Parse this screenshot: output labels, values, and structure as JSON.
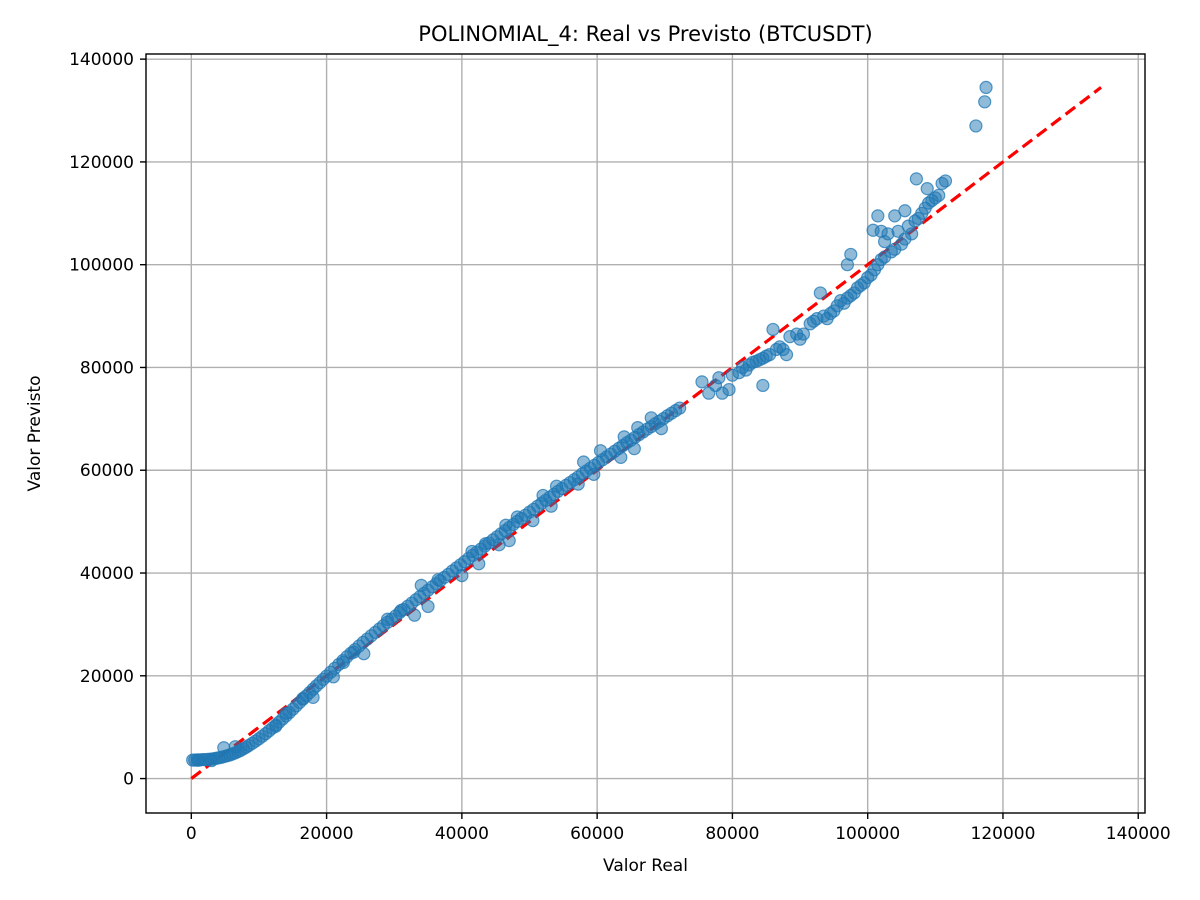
{
  "chart_data": {
    "type": "scatter",
    "title": "POLINOMIAL_4: Real vs Previsto (BTCUSDT)",
    "xlabel": "Valor Real",
    "ylabel": "Valor Previsto",
    "xlim": [
      -6700,
      141000
    ],
    "ylim": [
      -6700,
      141000
    ],
    "xticks": [
      0,
      20000,
      40000,
      60000,
      80000,
      100000,
      120000,
      140000
    ],
    "yticks": [
      0,
      20000,
      40000,
      60000,
      80000,
      100000,
      120000,
      140000
    ],
    "xtick_labels": [
      "0",
      "20000",
      "40000",
      "60000",
      "80000",
      "100000",
      "120000",
      "140000"
    ],
    "ytick_labels": [
      "0",
      "20000",
      "40000",
      "60000",
      "80000",
      "100000",
      "120000",
      "140000"
    ],
    "grid": true,
    "colors": {
      "points": "#1f77b4",
      "reference_line": "#ff0000"
    },
    "reference_line": {
      "x": [
        0,
        134500
      ],
      "y": [
        0,
        134500
      ],
      "style": "dashed"
    },
    "series": [
      {
        "points": [
          [
            200,
            3600
          ],
          [
            500,
            3600
          ],
          [
            900,
            3650
          ],
          [
            1300,
            3650
          ],
          [
            1700,
            3700
          ],
          [
            2100,
            3700
          ],
          [
            2500,
            3750
          ],
          [
            2900,
            3800
          ],
          [
            3300,
            3850
          ],
          [
            3700,
            3950
          ],
          [
            4100,
            4050
          ],
          [
            4500,
            4150
          ],
          [
            4900,
            4300
          ],
          [
            5300,
            4450
          ],
          [
            5700,
            4600
          ],
          [
            6100,
            4800
          ],
          [
            6500,
            5000
          ],
          [
            6900,
            5250
          ],
          [
            7300,
            5500
          ],
          [
            7700,
            5800
          ],
          [
            8100,
            6100
          ],
          [
            8500,
            6450
          ],
          [
            9000,
            6850
          ],
          [
            9500,
            7300
          ],
          [
            10000,
            7750
          ],
          [
            10500,
            8250
          ],
          [
            11000,
            8750
          ],
          [
            11500,
            9300
          ],
          [
            12000,
            9850
          ],
          [
            12500,
            10400
          ],
          [
            13000,
            11000
          ],
          [
            13500,
            11600
          ],
          [
            14000,
            12200
          ],
          [
            14500,
            12850
          ],
          [
            15000,
            13500
          ],
          [
            15500,
            14150
          ],
          [
            16000,
            14800
          ],
          [
            16500,
            15450
          ],
          [
            17000,
            16100
          ],
          [
            17500,
            16750
          ],
          [
            18000,
            17400
          ],
          [
            18500,
            18050
          ],
          [
            19000,
            18650
          ],
          [
            19500,
            19300
          ],
          [
            20000,
            19950
          ],
          [
            20600,
            20700
          ],
          [
            21200,
            21450
          ],
          [
            21800,
            22200
          ],
          [
            22400,
            22950
          ],
          [
            23000,
            23700
          ],
          [
            23600,
            24400
          ],
          [
            24200,
            25100
          ],
          [
            24800,
            25800
          ],
          [
            25400,
            26500
          ],
          [
            26000,
            27150
          ],
          [
            26600,
            27800
          ],
          [
            27200,
            28450
          ],
          [
            27800,
            29100
          ],
          [
            28400,
            29750
          ],
          [
            29000,
            30400
          ],
          [
            29600,
            31000
          ],
          [
            30200,
            31650
          ],
          [
            30800,
            32300
          ],
          [
            31400,
            32900
          ],
          [
            32000,
            33550
          ],
          [
            32600,
            34150
          ],
          [
            33200,
            34800
          ],
          [
            33800,
            35400
          ],
          [
            34400,
            36050
          ],
          [
            35000,
            36650
          ],
          [
            35600,
            37300
          ],
          [
            36200,
            37900
          ],
          [
            36800,
            38500
          ],
          [
            37400,
            39150
          ],
          [
            38000,
            39750
          ],
          [
            38600,
            40400
          ],
          [
            39200,
            41000
          ],
          [
            39800,
            41600
          ],
          [
            40400,
            42200
          ],
          [
            41000,
            42850
          ],
          [
            41600,
            43450
          ],
          [
            42200,
            44050
          ],
          [
            42800,
            44650
          ],
          [
            43400,
            45250
          ],
          [
            44000,
            45850
          ],
          [
            44600,
            46450
          ],
          [
            45200,
            47050
          ],
          [
            45800,
            47650
          ],
          [
            46400,
            48250
          ],
          [
            47000,
            48850
          ],
          [
            47600,
            49450
          ],
          [
            48200,
            50050
          ],
          [
            48800,
            50650
          ],
          [
            49400,
            51250
          ],
          [
            50000,
            51850
          ],
          [
            50600,
            52400
          ],
          [
            51200,
            53000
          ],
          [
            51800,
            53600
          ],
          [
            52400,
            54150
          ],
          [
            53000,
            54750
          ],
          [
            53600,
            55300
          ],
          [
            54200,
            55900
          ],
          [
            54800,
            56450
          ],
          [
            55400,
            57050
          ],
          [
            56000,
            57600
          ],
          [
            56600,
            58150
          ],
          [
            57200,
            58700
          ],
          [
            57800,
            59300
          ],
          [
            58400,
            59850
          ],
          [
            59000,
            60400
          ],
          [
            59600,
            60950
          ],
          [
            60200,
            61500
          ],
          [
            60800,
            62050
          ],
          [
            61400,
            62600
          ],
          [
            62000,
            63150
          ],
          [
            62600,
            63700
          ],
          [
            63200,
            64250
          ],
          [
            63800,
            64800
          ],
          [
            64400,
            65350
          ],
          [
            65000,
            65850
          ],
          [
            65600,
            66400
          ],
          [
            66200,
            66950
          ],
          [
            66800,
            67450
          ],
          [
            67400,
            68000
          ],
          [
            68000,
            68500
          ],
          [
            68600,
            69050
          ],
          [
            69200,
            69550
          ],
          [
            69800,
            70050
          ],
          [
            70400,
            70600
          ],
          [
            71000,
            71100
          ],
          [
            71600,
            71600
          ],
          [
            72200,
            72100
          ],
          [
            64000,
            66500
          ],
          [
            66000,
            68300
          ],
          [
            68000,
            70200
          ],
          [
            63500,
            62500
          ],
          [
            65500,
            64200
          ],
          [
            69500,
            68100
          ],
          [
            58000,
            61600
          ],
          [
            60500,
            63800
          ],
          [
            57200,
            57300
          ],
          [
            59500,
            59200
          ],
          [
            52000,
            55100
          ],
          [
            54000,
            56900
          ],
          [
            50500,
            50200
          ],
          [
            53200,
            53000
          ],
          [
            46500,
            49300
          ],
          [
            48200,
            50900
          ],
          [
            45500,
            45500
          ],
          [
            47000,
            46300
          ],
          [
            41500,
            44200
          ],
          [
            43500,
            45700
          ],
          [
            40000,
            39500
          ],
          [
            42500,
            41800
          ],
          [
            34000,
            37600
          ],
          [
            36500,
            38700
          ],
          [
            33000,
            31800
          ],
          [
            35000,
            33500
          ],
          [
            29000,
            31000
          ],
          [
            31000,
            32700
          ],
          [
            22500,
            22600
          ],
          [
            24000,
            24600
          ],
          [
            21000,
            19800
          ],
          [
            25500,
            24300
          ],
          [
            16500,
            15600
          ],
          [
            18000,
            15800
          ],
          [
            14000,
            12700
          ],
          [
            12500,
            10200
          ],
          [
            4800,
            6000
          ],
          [
            6500,
            6200
          ],
          [
            3000,
            3500
          ],
          [
            1000,
            3550
          ],
          [
            75500,
            77200
          ],
          [
            76500,
            75000
          ],
          [
            77500,
            76500
          ],
          [
            78000,
            78000
          ],
          [
            78500,
            75000
          ],
          [
            79500,
            75700
          ],
          [
            80000,
            78500
          ],
          [
            81000,
            79000
          ],
          [
            81500,
            80000
          ],
          [
            82000,
            79500
          ],
          [
            82500,
            80500
          ],
          [
            83000,
            81000
          ],
          [
            83500,
            81200
          ],
          [
            84000,
            81500
          ],
          [
            84500,
            76500
          ],
          [
            84500,
            81800
          ],
          [
            85000,
            82200
          ],
          [
            85500,
            82500
          ],
          [
            86000,
            87400
          ],
          [
            86500,
            83500
          ],
          [
            87000,
            84000
          ],
          [
            87500,
            83500
          ],
          [
            88000,
            82500
          ],
          [
            88500,
            86000
          ],
          [
            89500,
            86500
          ],
          [
            90000,
            85500
          ],
          [
            90500,
            86500
          ],
          [
            91500,
            88500
          ],
          [
            92000,
            89000
          ],
          [
            92500,
            89500
          ],
          [
            93000,
            94500
          ],
          [
            93500,
            90000
          ],
          [
            94000,
            89500
          ],
          [
            94500,
            90500
          ],
          [
            95000,
            91000
          ],
          [
            95500,
            92000
          ],
          [
            96000,
            93000
          ],
          [
            96500,
            92500
          ],
          [
            97000,
            100000
          ],
          [
            97000,
            93500
          ],
          [
            97500,
            102000
          ],
          [
            97500,
            94000
          ],
          [
            98000,
            94500
          ],
          [
            98500,
            95500
          ],
          [
            99000,
            96000
          ],
          [
            99500,
            96500
          ],
          [
            100000,
            97500
          ],
          [
            100500,
            98000
          ],
          [
            100800,
            106700
          ],
          [
            101000,
            99000
          ],
          [
            101500,
            109500
          ],
          [
            101500,
            100000
          ],
          [
            102000,
            106500
          ],
          [
            102000,
            101000
          ],
          [
            102500,
            104500
          ],
          [
            102500,
            101500
          ],
          [
            103000,
            106000
          ],
          [
            103500,
            102500
          ],
          [
            104000,
            109500
          ],
          [
            104000,
            103000
          ],
          [
            104500,
            106500
          ],
          [
            105000,
            104000
          ],
          [
            105500,
            110500
          ],
          [
            105500,
            105000
          ],
          [
            106000,
            107500
          ],
          [
            106500,
            106000
          ],
          [
            107000,
            108500
          ],
          [
            107200,
            116700
          ],
          [
            107500,
            109000
          ],
          [
            108000,
            110000
          ],
          [
            108500,
            111000
          ],
          [
            108800,
            114800
          ],
          [
            109000,
            112000
          ],
          [
            109500,
            112500
          ],
          [
            110000,
            113000
          ],
          [
            110500,
            113500
          ],
          [
            111000,
            115800
          ],
          [
            111500,
            116300
          ],
          [
            116000,
            127000
          ],
          [
            117300,
            131700
          ],
          [
            117500,
            134500
          ]
        ]
      }
    ]
  }
}
